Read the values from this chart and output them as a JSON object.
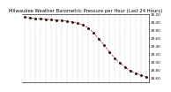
{
  "title": "Milwaukee Weather Barometric Pressure per Hour (Last 24 Hours)",
  "x_values": [
    0,
    1,
    2,
    3,
    4,
    5,
    6,
    7,
    8,
    9,
    10,
    11,
    12,
    13,
    14,
    15,
    16,
    17,
    18,
    19,
    20,
    21,
    22,
    23
  ],
  "y_values": [
    30.12,
    30.1,
    30.09,
    30.08,
    30.07,
    30.06,
    30.05,
    30.04,
    30.02,
    30.0,
    29.97,
    29.93,
    29.85,
    29.73,
    29.58,
    29.42,
    29.25,
    29.1,
    28.97,
    28.87,
    28.78,
    28.72,
    28.67,
    28.63
  ],
  "line_color": "#cc0000",
  "marker_color": "#000000",
  "grid_color": "#bbbbbb",
  "bg_color": "#ffffff",
  "title_fontsize": 3.8,
  "tick_fontsize": 3.0,
  "ylim_min": 28.5,
  "ylim_max": 30.2,
  "ytick_values": [
    28.6,
    28.8,
    29.0,
    29.2,
    29.4,
    29.6,
    29.8,
    30.0,
    30.2
  ],
  "xlim_min": 0,
  "xlim_max": 23
}
